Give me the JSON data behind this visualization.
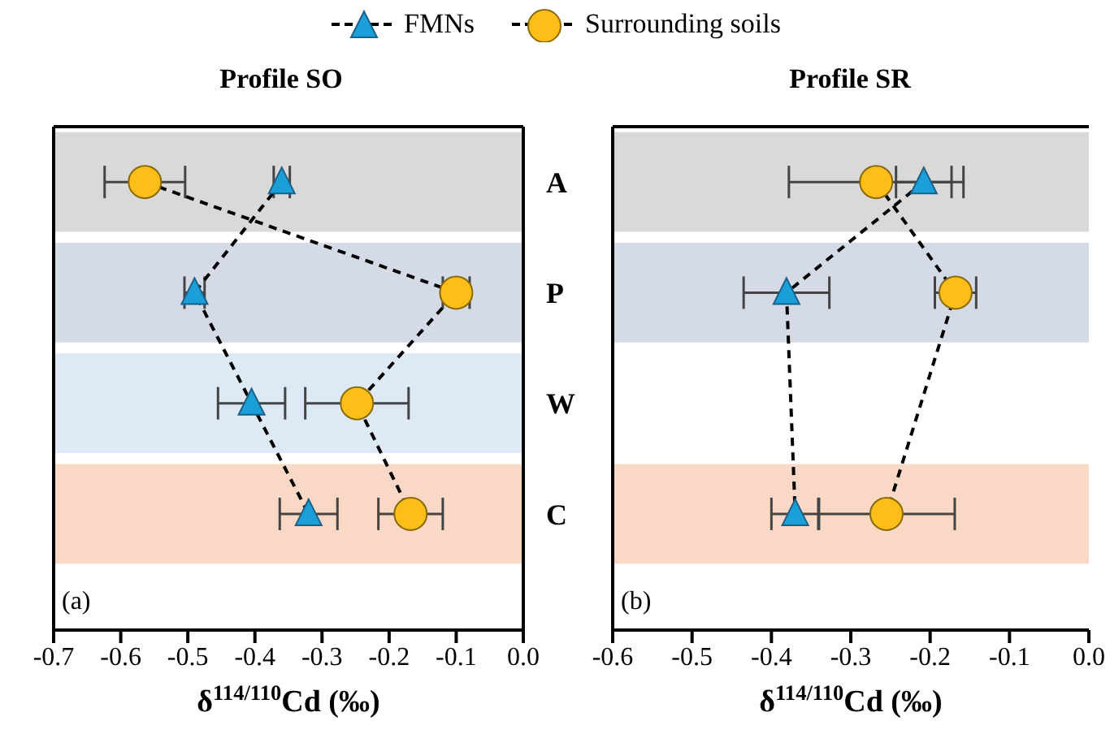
{
  "chart_data": [
    {
      "type": "line",
      "orientation": "horizontal",
      "title": "Profile SO",
      "xlabel": "δ$^{114/110}$Cd (‰)",
      "categories": [
        "A",
        "P",
        "W",
        "C"
      ],
      "legend": "top",
      "line_style": "dashed",
      "annotations": [
        "(a)"
      ],
      "xlim": [
        -0.7,
        0
      ],
      "xticks": [
        -0.7,
        -0.6,
        -0.5,
        -0.4,
        -0.3,
        -0.2,
        -0.1,
        {
          "value": 0,
          "label": "0.0"
        }
      ],
      "bands": [
        {
          "axis": "y",
          "from": "A",
          "to": "A",
          "color": "#d9d9d9"
        },
        {
          "axis": "y",
          "from": "P",
          "to": "P",
          "color": "#d5dbe6"
        },
        {
          "axis": "y",
          "from": "W",
          "to": "W",
          "color": "#dde9f5"
        },
        {
          "axis": "y",
          "from": "C",
          "to": "C",
          "color": "#f9d8c6"
        }
      ],
      "series": [
        {
          "name": "FMNs",
          "color": "#1a9fd9",
          "marker": "triangle",
          "values": [
            -0.36,
            -0.49,
            -0.405,
            -0.32
          ],
          "errors": [
            0.012,
            0.015,
            0.05,
            0.043
          ]
        },
        {
          "name": "Surrounding soils",
          "color": "#fdbe1a",
          "marker": "circle",
          "values": [
            -0.564,
            -0.1,
            -0.248,
            -0.168
          ],
          "errors": [
            0.06,
            0.02,
            0.077,
            0.048
          ]
        }
      ]
    },
    {
      "type": "line",
      "orientation": "horizontal",
      "title": "Profile SR",
      "xlabel": "δ$^{114/110}$Cd (‰)",
      "categories": [
        "A",
        "P",
        "W",
        "C"
      ],
      "tick_labels": "x",
      "line_style": "dashed",
      "annotations": [
        "(b)"
      ],
      "xlim": [
        -0.6,
        0
      ],
      "xticks": [
        -0.6,
        -0.5,
        -0.4,
        -0.3,
        -0.2,
        -0.1,
        {
          "value": 0,
          "label": "0.0"
        }
      ],
      "bands": [
        {
          "axis": "y",
          "from": "A",
          "to": "A",
          "color": "#d9d9d9"
        },
        {
          "axis": "y",
          "from": "P",
          "to": "P",
          "color": "#d5dbe6"
        },
        {
          "axis": "y",
          "from": "C",
          "to": "C",
          "color": "#f9d8c6"
        }
      ],
      "series": [
        {
          "color": "#1a9fd9",
          "marker": "triangle",
          "values": [
            -0.208,
            -0.381,
            null,
            -0.37
          ],
          "errors": [
            0.035,
            0.054,
            null,
            0.03
          ]
        },
        {
          "color": "#fdbe1a",
          "marker": "circle",
          "values": [
            -0.268,
            -0.168,
            null,
            -0.255
          ],
          "errors": [
            0.11,
            0.026,
            null,
            0.086
          ]
        }
      ]
    }
  ]
}
